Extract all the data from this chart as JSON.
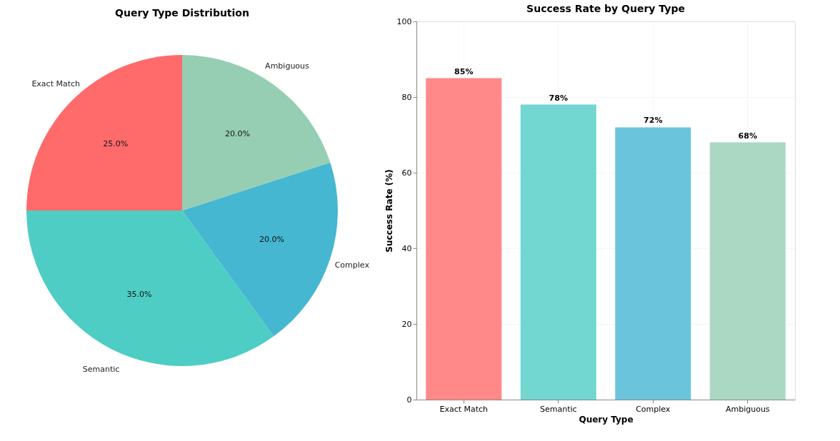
{
  "chart_data": [
    {
      "type": "pie",
      "title": "Query Type Distribution",
      "categories": [
        "Exact Match",
        "Semantic",
        "Complex",
        "Ambiguous"
      ],
      "values": [
        25,
        35,
        20,
        20
      ],
      "colors": [
        "#ff6b6b",
        "#4ecdc4",
        "#45b7d1",
        "#96ceb4"
      ],
      "value_labels": [
        "25.0%",
        "35.0%",
        "20.0%",
        "20.0%"
      ]
    },
    {
      "type": "bar",
      "title": "Success Rate by Query Type",
      "xlabel": "Query Type",
      "ylabel": "Success Rate (%)",
      "categories": [
        "Exact Match",
        "Semantic",
        "Complex",
        "Ambiguous"
      ],
      "values": [
        85,
        78,
        72,
        68
      ],
      "colors": [
        "#ff8989",
        "#71d7d0",
        "#6ac5dc",
        "#abd8c3"
      ],
      "value_labels": [
        "85%",
        "78%",
        "72%",
        "68%"
      ],
      "ylim": [
        0,
        100
      ],
      "yticks": [
        0,
        20,
        40,
        60,
        80,
        100
      ],
      "grid": true
    }
  ]
}
